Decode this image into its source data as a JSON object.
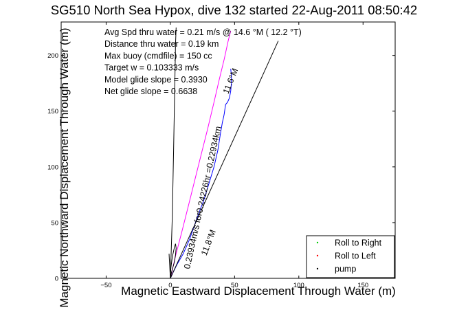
{
  "chart_data": {
    "type": "line",
    "title": "SG510 North Sea Hypox, dive 132 started 22-Aug-2011 08:50:42",
    "xlabel": "Magnetic Eastward Displacement Through Water (m)",
    "ylabel": "Magnetic Northward Displacement Through Water (m)",
    "xlim": [
      -85,
      175
    ],
    "ylim": [
      0,
      230
    ],
    "xticks": [
      -50,
      0,
      50,
      100,
      150
    ],
    "yticks": [
      0,
      50,
      100,
      150,
      200
    ],
    "xtick_labels": [
      "−50",
      "0",
      "50",
      "100",
      "150"
    ],
    "ytick_labels": [
      "0",
      "50",
      "100",
      "150",
      "200"
    ],
    "grid": false,
    "legend_position": "bottom-right",
    "legend": [
      {
        "label": "Roll to Right",
        "color": "#00cc00",
        "marker": "."
      },
      {
        "label": "Roll to Left",
        "color": "#ff0000",
        "marker": "."
      },
      {
        "label": "pump",
        "color": "#000000",
        "marker": "."
      }
    ],
    "info_lines": [
      "Avg Spd thru water =  0.21 m/s @  14.6   °M ( 12.2 °T)",
      "Distance thru water =  0.19 km",
      "Max buoy (cmdfile) = 150 cc",
      "Target w = 0.103333 m/s",
      "Model glide slope = 0.3930",
      "Net glide slope = 0.6638"
    ],
    "annotations": [
      {
        "text": "0.23934m/s for0.24226hr =0.22934km",
        "x": 15,
        "y": 8,
        "angle_deg": -77.5
      },
      {
        "text": "11.8°M",
        "x": 28,
        "y": 20,
        "angle_deg": -69
      },
      {
        "text": "11.6°M",
        "x": 45,
        "y": 165,
        "angle_deg": -68
      }
    ],
    "series": [
      {
        "color": "#0000ff",
        "x": [
          0,
          2,
          5,
          10,
          15,
          18,
          22,
          26,
          30,
          34,
          37,
          39,
          40.5,
          41.5,
          42,
          42.5,
          43,
          44.5,
          46,
          47,
          47.5,
          47.5,
          47
        ],
        "y": [
          0,
          5,
          12,
          22,
          35,
          45,
          58,
          70,
          85,
          100,
          115,
          130,
          140,
          145,
          148,
          152,
          156,
          158,
          162,
          168,
          175,
          182,
          188
        ]
      },
      {
        "color": "#ff00ff",
        "x": [
          0,
          4,
          9,
          14,
          19,
          24,
          29,
          34,
          38,
          42,
          45,
          47
        ],
        "y": [
          0,
          20,
          42,
          65,
          88,
          111,
          134,
          158,
          178,
          197,
          213,
          222
        ]
      },
      {
        "color": "#000000",
        "x": [
          0,
          84
        ],
        "y": [
          0,
          213
        ]
      },
      {
        "color": "#000000",
        "x": [
          -1,
          0,
          1.5,
          2.5,
          3.5,
          4,
          4.5
        ],
        "y": [
          22,
          0,
          55,
          115,
          175,
          210,
          225
        ]
      },
      {
        "color": "#000000",
        "x": [
          0,
          1,
          3,
          4,
          4.5,
          4,
          3,
          1.5,
          0.5,
          0
        ],
        "y": [
          0,
          6,
          14,
          21,
          27,
          31,
          27,
          19,
          10,
          3
        ]
      }
    ]
  }
}
